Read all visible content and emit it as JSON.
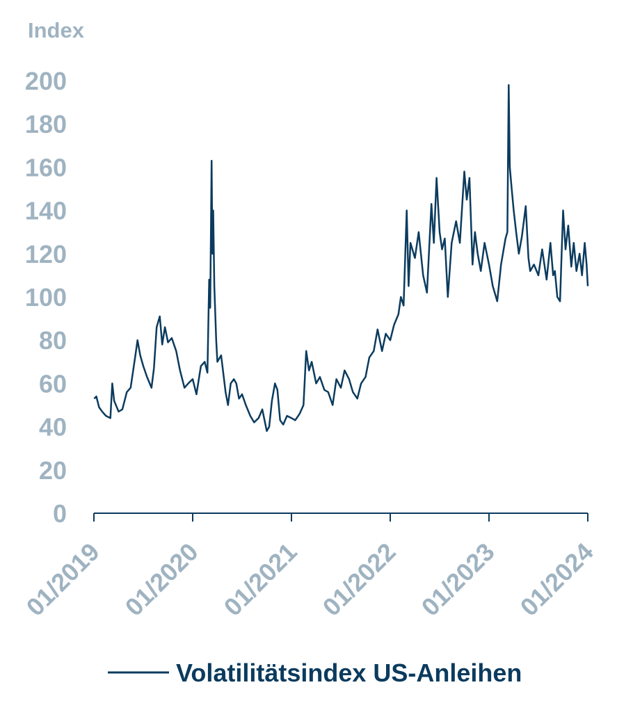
{
  "chart_data": {
    "type": "line",
    "title": "",
    "xlabel": "",
    "ylabel": "Index",
    "ylim": [
      0,
      200
    ],
    "xlim": [
      "2019-01",
      "2024-01"
    ],
    "y_ticks": [
      "0",
      "20",
      "40",
      "60",
      "80",
      "100",
      "120",
      "140",
      "160",
      "180",
      "200"
    ],
    "x_ticks": [
      "01/2019",
      "01/2020",
      "01/2021",
      "01/2022",
      "01/2023",
      "01/2024"
    ],
    "grid": false,
    "legend_position": "bottom",
    "colors": {
      "series": "#0b3b5e",
      "axis_text": "#9fb3c1",
      "axis_line": "#0b3b5e"
    },
    "series": [
      {
        "name": "Volatilitätsindex US-Anleihen",
        "points": [
          [
            "2019-01-02",
            53
          ],
          [
            "2019-01-10",
            54
          ],
          [
            "2019-01-20",
            49
          ],
          [
            "2019-02-01",
            47
          ],
          [
            "2019-02-15",
            45
          ],
          [
            "2019-03-01",
            44
          ],
          [
            "2019-03-08",
            60
          ],
          [
            "2019-03-15",
            52
          ],
          [
            "2019-04-01",
            47
          ],
          [
            "2019-04-15",
            48
          ],
          [
            "2019-05-01",
            56
          ],
          [
            "2019-05-15",
            58
          ],
          [
            "2019-06-01",
            72
          ],
          [
            "2019-06-10",
            80
          ],
          [
            "2019-06-20",
            73
          ],
          [
            "2019-07-01",
            68
          ],
          [
            "2019-07-15",
            63
          ],
          [
            "2019-08-01",
            58
          ],
          [
            "2019-08-10",
            67
          ],
          [
            "2019-08-20",
            86
          ],
          [
            "2019-09-01",
            91
          ],
          [
            "2019-09-10",
            78
          ],
          [
            "2019-09-20",
            86
          ],
          [
            "2019-10-01",
            79
          ],
          [
            "2019-10-15",
            81
          ],
          [
            "2019-11-01",
            75
          ],
          [
            "2019-11-15",
            66
          ],
          [
            "2019-12-01",
            58
          ],
          [
            "2019-12-15",
            60
          ],
          [
            "2020-01-01",
            62
          ],
          [
            "2020-01-15",
            55
          ],
          [
            "2020-02-01",
            68
          ],
          [
            "2020-02-15",
            70
          ],
          [
            "2020-02-25",
            65
          ],
          [
            "2020-03-01",
            108
          ],
          [
            "2020-03-05",
            95
          ],
          [
            "2020-03-10",
            163
          ],
          [
            "2020-03-13",
            120
          ],
          [
            "2020-03-16",
            140
          ],
          [
            "2020-03-20",
            105
          ],
          [
            "2020-03-27",
            80
          ],
          [
            "2020-04-01",
            70
          ],
          [
            "2020-04-15",
            73
          ],
          [
            "2020-05-01",
            56
          ],
          [
            "2020-05-10",
            50
          ],
          [
            "2020-05-20",
            60
          ],
          [
            "2020-06-01",
            62
          ],
          [
            "2020-06-10",
            60
          ],
          [
            "2020-06-20",
            53
          ],
          [
            "2020-07-01",
            55
          ],
          [
            "2020-07-15",
            50
          ],
          [
            "2020-08-01",
            45
          ],
          [
            "2020-08-15",
            42
          ],
          [
            "2020-09-01",
            44
          ],
          [
            "2020-09-15",
            48
          ],
          [
            "2020-10-01",
            38
          ],
          [
            "2020-10-10",
            40
          ],
          [
            "2020-10-20",
            52
          ],
          [
            "2020-11-01",
            60
          ],
          [
            "2020-11-10",
            57
          ],
          [
            "2020-11-20",
            43
          ],
          [
            "2020-12-01",
            41
          ],
          [
            "2020-12-15",
            45
          ],
          [
            "2021-01-01",
            44
          ],
          [
            "2021-01-15",
            43
          ],
          [
            "2021-02-01",
            46
          ],
          [
            "2021-02-15",
            50
          ],
          [
            "2021-02-25",
            75
          ],
          [
            "2021-03-05",
            66
          ],
          [
            "2021-03-15",
            70
          ],
          [
            "2021-04-01",
            60
          ],
          [
            "2021-04-15",
            63
          ],
          [
            "2021-05-01",
            57
          ],
          [
            "2021-05-15",
            56
          ],
          [
            "2021-06-01",
            50
          ],
          [
            "2021-06-15",
            62
          ],
          [
            "2021-07-01",
            58
          ],
          [
            "2021-07-15",
            66
          ],
          [
            "2021-08-01",
            62
          ],
          [
            "2021-08-15",
            56
          ],
          [
            "2021-09-01",
            53
          ],
          [
            "2021-09-15",
            60
          ],
          [
            "2021-10-01",
            63
          ],
          [
            "2021-10-15",
            72
          ],
          [
            "2021-11-01",
            75
          ],
          [
            "2021-11-15",
            85
          ],
          [
            "2021-12-01",
            75
          ],
          [
            "2021-12-15",
            83
          ],
          [
            "2022-01-01",
            80
          ],
          [
            "2022-01-15",
            87
          ],
          [
            "2022-02-01",
            92
          ],
          [
            "2022-02-10",
            100
          ],
          [
            "2022-02-20",
            96
          ],
          [
            "2022-03-01",
            140
          ],
          [
            "2022-03-08",
            105
          ],
          [
            "2022-03-15",
            125
          ],
          [
            "2022-04-01",
            118
          ],
          [
            "2022-04-15",
            130
          ],
          [
            "2022-05-01",
            110
          ],
          [
            "2022-05-15",
            102
          ],
          [
            "2022-06-01",
            143
          ],
          [
            "2022-06-10",
            125
          ],
          [
            "2022-06-20",
            155
          ],
          [
            "2022-07-01",
            130
          ],
          [
            "2022-07-10",
            122
          ],
          [
            "2022-07-20",
            127
          ],
          [
            "2022-08-01",
            100
          ],
          [
            "2022-08-15",
            125
          ],
          [
            "2022-09-01",
            135
          ],
          [
            "2022-09-15",
            125
          ],
          [
            "2022-10-01",
            158
          ],
          [
            "2022-10-10",
            145
          ],
          [
            "2022-10-20",
            155
          ],
          [
            "2022-11-01",
            115
          ],
          [
            "2022-11-10",
            130
          ],
          [
            "2022-11-20",
            120
          ],
          [
            "2022-12-01",
            112
          ],
          [
            "2022-12-15",
            125
          ],
          [
            "2023-01-01",
            115
          ],
          [
            "2023-01-15",
            105
          ],
          [
            "2023-02-01",
            98
          ],
          [
            "2023-02-15",
            115
          ],
          [
            "2023-03-01",
            127
          ],
          [
            "2023-03-08",
            130
          ],
          [
            "2023-03-13",
            198
          ],
          [
            "2023-03-17",
            160
          ],
          [
            "2023-03-24",
            150
          ],
          [
            "2023-04-01",
            140
          ],
          [
            "2023-04-10",
            130
          ],
          [
            "2023-04-20",
            120
          ],
          [
            "2023-05-01",
            128
          ],
          [
            "2023-05-15",
            142
          ],
          [
            "2023-05-25",
            118
          ],
          [
            "2023-06-01",
            112
          ],
          [
            "2023-06-15",
            115
          ],
          [
            "2023-07-01",
            110
          ],
          [
            "2023-07-15",
            122
          ],
          [
            "2023-08-01",
            108
          ],
          [
            "2023-08-15",
            125
          ],
          [
            "2023-08-25",
            110
          ],
          [
            "2023-09-01",
            112
          ],
          [
            "2023-09-10",
            100
          ],
          [
            "2023-09-20",
            98
          ],
          [
            "2023-10-01",
            140
          ],
          [
            "2023-10-10",
            122
          ],
          [
            "2023-10-20",
            133
          ],
          [
            "2023-11-01",
            114
          ],
          [
            "2023-11-10",
            125
          ],
          [
            "2023-11-20",
            112
          ],
          [
            "2023-12-01",
            120
          ],
          [
            "2023-12-10",
            110
          ],
          [
            "2023-12-20",
            125
          ],
          [
            "2023-12-27",
            115
          ],
          [
            "2024-01-01",
            105
          ]
        ]
      }
    ]
  }
}
